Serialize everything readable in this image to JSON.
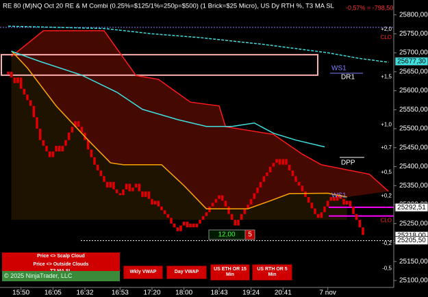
{
  "chart_data": {
    "type": "renko",
    "title": "RE 80 (M)NQ Oct 20 RE & M Combi (0.25%=$125/1%=250p=$500)  (1 Brick=$25 Micro), US Dy RTH %, T3 MA SL",
    "pnl": "-0,57% = -798,50",
    "xlim": [
      0,
      120
    ],
    "xticks": [
      {
        "value": 4,
        "label": "15:50"
      },
      {
        "value": 14,
        "label": "16:05"
      },
      {
        "value": 24,
        "label": "16:32"
      },
      {
        "value": 35,
        "label": "16:53"
      },
      {
        "value": 45,
        "label": "17:20"
      },
      {
        "value": 55,
        "label": "18:00"
      },
      {
        "value": 66,
        "label": "18:43"
      },
      {
        "value": 76,
        "label": "19:24"
      },
      {
        "value": 86,
        "label": "20:41"
      },
      {
        "value": 100,
        "label": "7 nov"
      }
    ],
    "ylim": [
      25080,
      25830
    ],
    "yticks": [
      {
        "value": 25100,
        "label": "25100,00"
      },
      {
        "value": 25150,
        "label": "25150,00"
      },
      {
        "value": 25200,
        "label": "25200,00"
      },
      {
        "value": 25250,
        "label": "25250,00"
      },
      {
        "value": 25300,
        "label": "25300,00"
      },
      {
        "value": 25350,
        "label": "25350,00"
      },
      {
        "value": 25400,
        "label": "25400,00"
      },
      {
        "value": 25450,
        "label": "25450,00"
      },
      {
        "value": 25500,
        "label": "25500,00"
      },
      {
        "value": 25550,
        "label": "25550,00"
      },
      {
        "value": 25600,
        "label": "25600,00"
      },
      {
        "value": 25650,
        "label": "25650,00"
      },
      {
        "value": 25700,
        "label": "25700,00"
      },
      {
        "value": 25750,
        "label": "25750,00"
      },
      {
        "value": 25800,
        "label": "25800,00"
      }
    ],
    "color": "#e00000",
    "values": [
      25650,
      25635,
      25620,
      25635,
      25605,
      25590,
      25575,
      25560,
      25530,
      25500,
      25470,
      25455,
      25440,
      25425,
      25440,
      25455,
      25440,
      25455,
      25470,
      25490,
      25505,
      25520,
      25505,
      25490,
      25470,
      25445,
      25425,
      25405,
      25390,
      25375,
      25360,
      25345,
      25360,
      25340,
      25330,
      25325,
      25340,
      25355,
      25335,
      25345,
      25355,
      25335,
      25320,
      25335,
      25315,
      25300,
      25310,
      25295,
      25285,
      25275,
      25265,
      25250,
      25240,
      25230,
      25245,
      25255,
      25240,
      25250,
      25240,
      25250,
      25260,
      25270,
      25280,
      25295,
      25305,
      25315,
      25325,
      25310,
      25295,
      25275,
      25260,
      25245,
      25260,
      25275,
      25290,
      25300,
      25315,
      25330,
      25345,
      25360,
      25375,
      25385,
      25400,
      25410,
      25420,
      25405,
      25420,
      25405,
      25390,
      25375,
      25360,
      25350,
      25335,
      25320,
      25305,
      25290,
      25275,
      25265,
      25280,
      25295,
      25310,
      25320,
      25310,
      25325,
      25315,
      25300,
      25310,
      25295,
      25275,
      25260,
      25240,
      25220
    ],
    "lines": [
      {
        "color": "#ff1a1a",
        "x": [
          1,
          11,
          30,
          40,
          47,
          57,
          66,
          68,
          83,
          92,
          98,
          113,
          119
        ],
        "values": [
          25690,
          25758,
          25758,
          25640,
          25630,
          25570,
          25560,
          25505,
          25485,
          25433,
          25405,
          25380,
          25335
        ]
      },
      {
        "color": "#ffa500",
        "x": [
          1,
          6,
          15,
          25,
          32,
          36,
          48,
          55,
          62,
          75,
          82,
          88,
          100,
          106
        ],
        "values": [
          25705,
          25660,
          25560,
          25470,
          25410,
          25405,
          25405,
          25350,
          25289,
          25289,
          25310,
          25329,
          25330,
          25320
        ]
      },
      {
        "color": "#40e0e0",
        "x": [
          1,
          10,
          23,
          34,
          42,
          53,
          62,
          70,
          77,
          83,
          90,
          99
        ],
        "values": [
          25704,
          25677,
          25641,
          25596,
          25551,
          25524,
          25506,
          25506,
          25515,
          25488,
          25470,
          25452
        ]
      },
      {
        "color": "#40e0e0",
        "dash": true,
        "x": [
          0,
          30,
          45,
          60,
          80,
          100,
          110,
          119
        ],
        "values": [
          25770,
          25764,
          25750,
          25740,
          25722,
          25700,
          25685,
          25675
        ]
      }
    ],
    "hlines": [
      {
        "value": 25767,
        "color": "#8080ff",
        "dash": true
      },
      {
        "value": 25293,
        "color": "#ff00ff"
      },
      {
        "value": 25270,
        "color": "#ff00ff"
      },
      {
        "value": 25205,
        "color": "#ffffff",
        "dash": true
      }
    ],
    "zone": [
      25641,
      25695
    ],
    "levels": [
      {
        "value": 25762,
        "label": "+2,0",
        "color": "#ffffff"
      },
      {
        "value": 25740,
        "label": "CLO",
        "color": "#ff2020"
      },
      {
        "value": 25636,
        "label": "+1,5",
        "color": "#ffffff"
      },
      {
        "value": 25510,
        "label": "+1,0",
        "color": "#ffffff"
      },
      {
        "value": 25450,
        "label": "+0,7",
        "color": "#ffffff"
      },
      {
        "value": 25385,
        "label": "+0,5",
        "color": "#ffffff"
      },
      {
        "value": 25323,
        "label": "+0,2",
        "color": "#ffffff"
      },
      {
        "value": 25258,
        "label": "CLO",
        "color": "#ff2020"
      },
      {
        "value": 25197,
        "label": "-0,2",
        "color": "#ffffff"
      },
      {
        "value": 25132,
        "label": "-0,5",
        "color": "#ffffff"
      }
    ],
    "price_markers": [
      {
        "value": 25677.3,
        "label": "25677,30",
        "color": "#40e0e0"
      },
      {
        "value": 25292.51,
        "label": "25292,51",
        "color": "#ffffff"
      },
      {
        "value": 25218,
        "label": "25218,00",
        "color": "#ffffff"
      },
      {
        "value": 25205.5,
        "label": "25205,50",
        "color": "#ffffff"
      }
    ],
    "annotations": [
      "WS1",
      "DR1",
      "DPP",
      "WS1"
    ],
    "counters": [
      "12,00",
      "5"
    ],
    "panel": [
      "Price <> Scalp Cloud",
      "Price <> Outside Clouds",
      "T3 MA SL"
    ],
    "copyright": "© 2025 NinjaTrader, LLC",
    "buttons": [
      "Wkly VWAP",
      "Day VWAP",
      "US ETH OR 15 Min",
      "US RTH OR 5 Min"
    ]
  }
}
